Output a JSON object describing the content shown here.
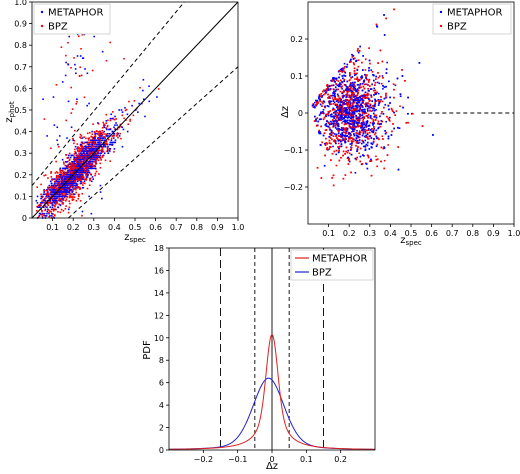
{
  "chart_data": [
    {
      "type": "scatter",
      "xlabel": "z_spec",
      "ylabel": "z_phot",
      "xlim": [
        0,
        1.0
      ],
      "ylim": [
        0,
        1.0
      ],
      "xticks": [
        "0.1",
        "0.2",
        "0.3",
        "0.4",
        "0.5",
        "0.6",
        "0.7",
        "0.8",
        "0.9",
        "1.0"
      ],
      "yticks": [
        "0",
        "0.1",
        "0.2",
        "0.3",
        "0.4",
        "0.5",
        "0.6",
        "0.7",
        "0.8",
        "0.9",
        "1.0"
      ],
      "legend": "top-left",
      "series": [
        {
          "name": "METAPHOR",
          "color": "#0000ff"
        },
        {
          "name": "BPZ",
          "color": "#ff0000"
        }
      ],
      "reference_lines": [
        {
          "style": "solid",
          "slope": 1.0,
          "intercept": 0.0
        },
        {
          "style": "dashed",
          "slope": 1.15,
          "intercept": 0.15
        },
        {
          "style": "dashed",
          "slope": 0.85,
          "intercept": -0.15
        }
      ],
      "grid": false
    },
    {
      "type": "scatter",
      "xlabel": "z_spec",
      "ylabel": "Δz",
      "xlim": [
        0,
        1.0
      ],
      "ylim": [
        -0.3,
        0.3
      ],
      "xticks": [
        "0.1",
        "0.2",
        "0.3",
        "0.4",
        "0.5",
        "0.6",
        "0.7",
        "0.8",
        "0.9",
        "1.0"
      ],
      "yticks": [
        "−0.2",
        "−0.1",
        "0",
        "0.1",
        "0.2"
      ],
      "legend": "top-right",
      "series": [
        {
          "name": "METAPHOR",
          "color": "#0000ff"
        },
        {
          "name": "BPZ",
          "color": "#ff0000"
        }
      ],
      "reference_lines": [
        {
          "style": "dashed",
          "y": 0.0,
          "x_from": 0.55,
          "x_to": 1.0
        }
      ],
      "grid": false
    },
    {
      "type": "line",
      "xlabel": "Δz",
      "ylabel": "PDF",
      "xlim": [
        -0.3,
        0.3
      ],
      "ylim": [
        0,
        18
      ],
      "xticks": [
        "−0.2",
        "−0.1",
        "0",
        "0.1",
        "0.2"
      ],
      "yticks": [
        "0",
        "2",
        "4",
        "6",
        "8",
        "10",
        "12",
        "14",
        "16",
        "18"
      ],
      "legend": "top-right",
      "series": [
        {
          "name": "METAPHOR",
          "color": "#dd2222",
          "peak_x": 0.0,
          "peak_y": 10.3
        },
        {
          "name": "BPZ",
          "color": "#2222cc",
          "peak_x": -0.01,
          "peak_y": 6.4
        }
      ],
      "vertical_lines": [
        {
          "x": -0.15,
          "style": "long-dash"
        },
        {
          "x": -0.05,
          "style": "dashed"
        },
        {
          "x": 0.0,
          "style": "solid"
        },
        {
          "x": 0.05,
          "style": "dashed"
        },
        {
          "x": 0.15,
          "style": "long-dash"
        }
      ],
      "grid": false
    }
  ]
}
